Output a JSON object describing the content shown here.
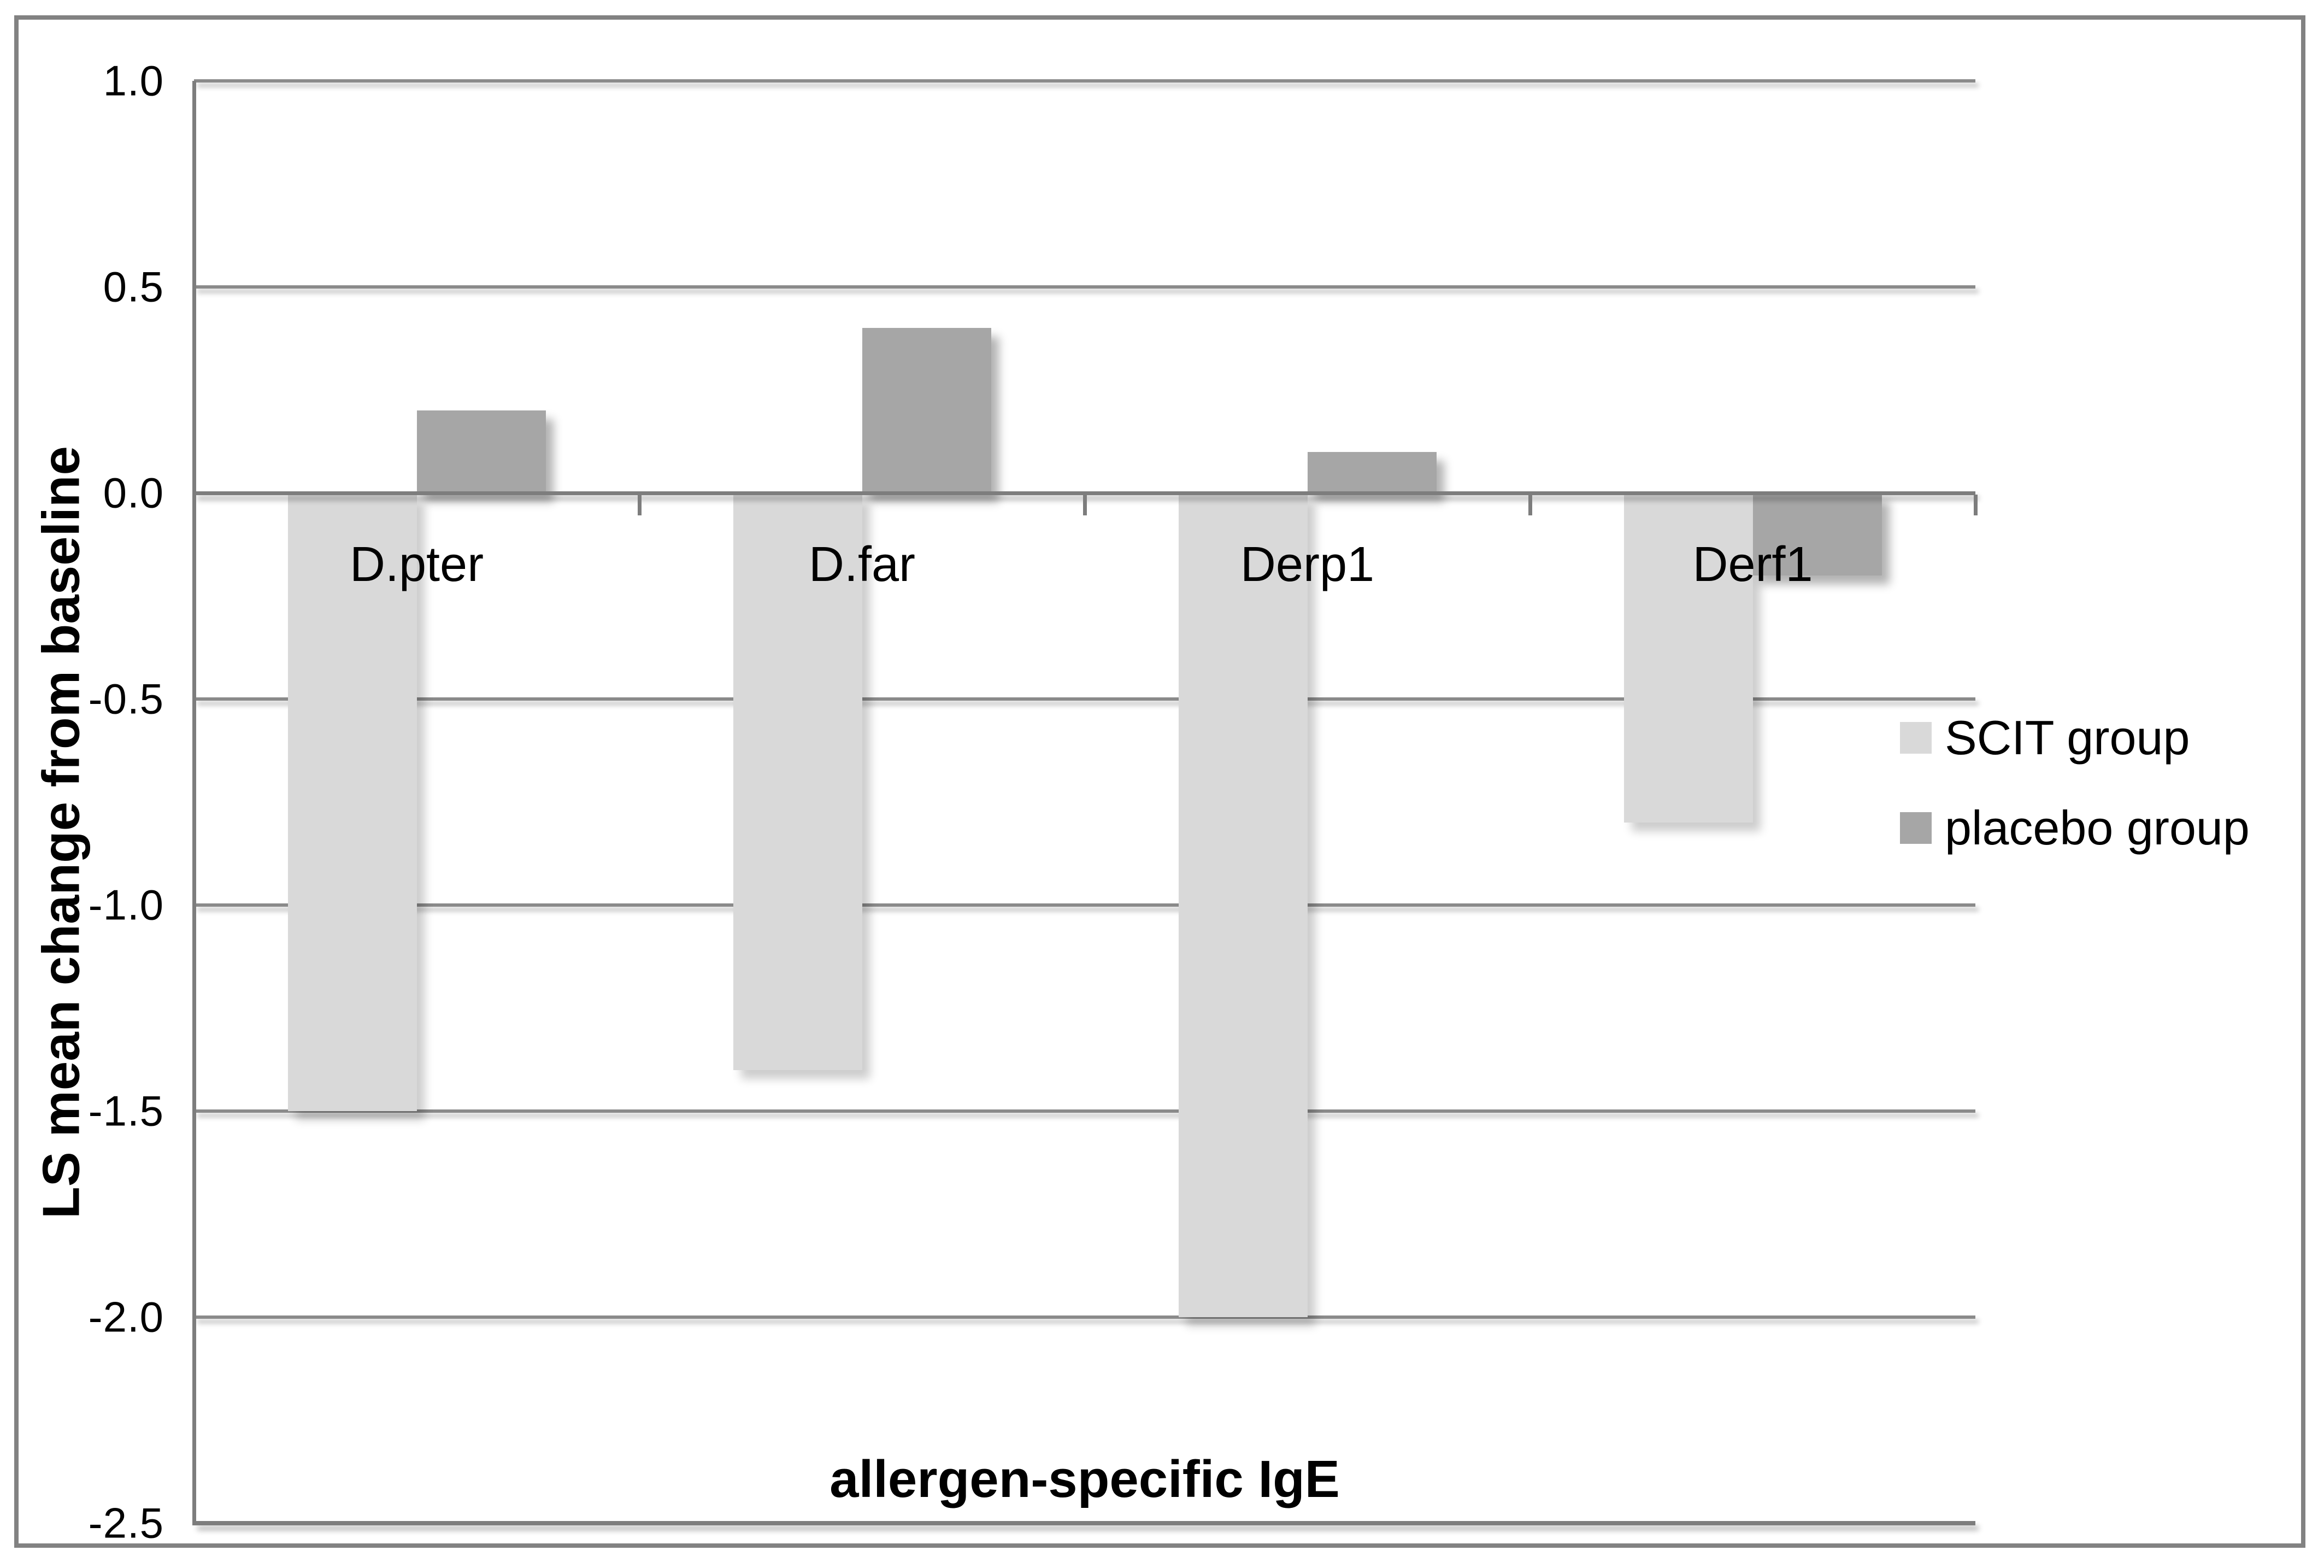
{
  "chart_data": {
    "type": "bar",
    "title": "",
    "categories": [
      "D.pter",
      "D.far",
      "Derp1",
      "Derf1"
    ],
    "series": [
      {
        "name": "SCIT group",
        "color": "#d9d9d9",
        "values": [
          -1.5,
          -1.4,
          -2.0,
          -0.8
        ]
      },
      {
        "name": "placebo group",
        "color": "#a6a6a6",
        "values": [
          0.2,
          0.4,
          0.1,
          -0.2
        ]
      }
    ],
    "xlabel": "allergen-specific IgE",
    "ylabel": "LS mean change from baseline",
    "ylim": [
      -2.5,
      1.0
    ],
    "ytick_step": 0.5,
    "ytick_labels": [
      "1.0",
      "0.5",
      "0.0",
      "-0.5",
      "-1.0",
      "-1.5",
      "-2.0",
      "-2.5"
    ],
    "grid": true,
    "legend_position": "right",
    "bar_orientation": "vertical"
  },
  "colors": {
    "scit_fill": "#d9d9d9",
    "placebo_fill": "#a6a6a6",
    "gridline": "#8a8a8a",
    "axis": "#7d7d7d",
    "figure_border": "#828282",
    "text": "#000000",
    "background": "#ffffff"
  }
}
